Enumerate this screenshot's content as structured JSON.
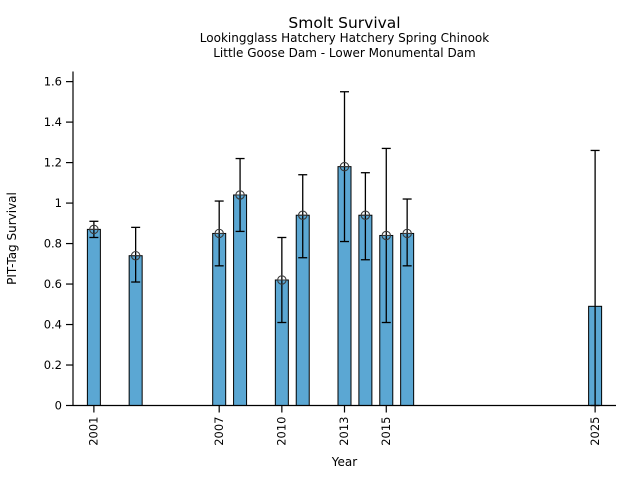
{
  "header": {
    "title": "Smolt Survival",
    "subtitle1": "Lookingglass Hatchery Hatchery Spring Chinook",
    "subtitle2": "Little Goose Dam - Lower Monumental Dam"
  },
  "chart_data": {
    "type": "bar",
    "title": "Smolt Survival",
    "subtitle": [
      "Lookingglass Hatchery Hatchery Spring Chinook",
      "Little Goose Dam - Lower Monumental Dam"
    ],
    "xlabel": "Year",
    "ylabel": "PIT-Tag Survival",
    "xlim": [
      2000,
      2026
    ],
    "ylim": [
      0,
      1.65
    ],
    "yticks": [
      0,
      0.2,
      0.4,
      0.6,
      0.8,
      1.0,
      1.2,
      1.4,
      1.6
    ],
    "ytick_labels": [
      "0",
      "0.2",
      "0.4",
      "0.6",
      "0.8",
      "1",
      "1.2",
      "1.4",
      "1.6"
    ],
    "xticks": [
      2001,
      2007,
      2010,
      2013,
      2015,
      2025
    ],
    "grid": false,
    "legend": null,
    "bar_color": "#5ba7d3",
    "bar_edge_color": "#000000",
    "errorbar_color": "#000000",
    "marker_color": "#3a3a3a",
    "points": [
      {
        "year": 2001,
        "value": 0.87,
        "err_low": 0.83,
        "err_high": 0.91,
        "marker": true
      },
      {
        "year": 2003,
        "value": 0.74,
        "err_low": 0.61,
        "err_high": 0.88,
        "marker": true
      },
      {
        "year": 2007,
        "value": 0.85,
        "err_low": 0.69,
        "err_high": 1.01,
        "marker": true
      },
      {
        "year": 2008,
        "value": 1.04,
        "err_low": 0.86,
        "err_high": 1.22,
        "marker": true
      },
      {
        "year": 2010,
        "value": 0.62,
        "err_low": 0.41,
        "err_high": 0.83,
        "marker": true
      },
      {
        "year": 2011,
        "value": 0.94,
        "err_low": 0.73,
        "err_high": 1.14,
        "marker": true
      },
      {
        "year": 2013,
        "value": 1.18,
        "err_low": 0.81,
        "err_high": 1.55,
        "marker": true
      },
      {
        "year": 2014,
        "value": 0.94,
        "err_low": 0.72,
        "err_high": 1.15,
        "marker": true
      },
      {
        "year": 2015,
        "value": 0.84,
        "err_low": 0.41,
        "err_high": 1.27,
        "marker": true
      },
      {
        "year": 2016,
        "value": 0.85,
        "err_low": 0.69,
        "err_high": 1.02,
        "marker": true
      },
      {
        "year": 2025,
        "value": 0.49,
        "err_low": 0.0,
        "err_high": 1.26,
        "marker": false
      }
    ]
  }
}
